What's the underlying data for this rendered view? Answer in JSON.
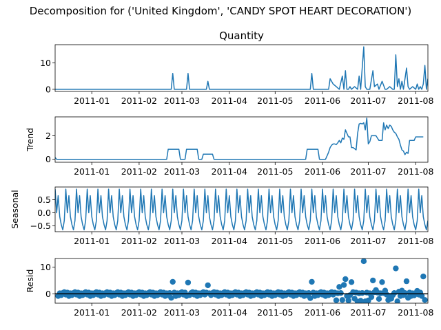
{
  "figure": {
    "suptitle": "Decomposition for ('United Kingdom', 'CANDY SPOT HEART DECORATION')",
    "colors": {
      "series": "#1f77b4",
      "axes": "#000000",
      "background": "#ffffff"
    }
  },
  "chart_data": [
    {
      "panel": "observed",
      "type": "line",
      "title": "Quantity",
      "ylabel": "",
      "xlim": [
        "2010-12-08",
        "2011-08-09"
      ],
      "ylim": [
        -0.8,
        16.8
      ],
      "x_ticks": [
        "2011-01",
        "2011-02",
        "2011-03",
        "2011-04",
        "2011-05",
        "2011-06",
        "2011-07",
        "2011-08"
      ],
      "y_ticks": [
        "0",
        "10"
      ],
      "y_tick_values": [
        0,
        10
      ],
      "series": [
        {
          "x": [
            "2010-12-08",
            "2011-02-22",
            "2011-02-23",
            "2011-02-24",
            "2011-03-04",
            "2011-03-05",
            "2011-03-06",
            "2011-03-17",
            "2011-03-18",
            "2011-03-19",
            "2011-05-24",
            "2011-05-25",
            "2011-05-26",
            "2011-06-05",
            "2011-06-06",
            "2011-06-08",
            "2011-06-10",
            "2011-06-12",
            "2011-06-14",
            "2011-06-15",
            "2011-06-16",
            "2011-06-17",
            "2011-06-18",
            "2011-06-19",
            "2011-06-20",
            "2011-06-22",
            "2011-06-24",
            "2011-06-25",
            "2011-06-26",
            "2011-06-28",
            "2011-06-29",
            "2011-06-30",
            "2011-07-02",
            "2011-07-04",
            "2011-07-05",
            "2011-07-07",
            "2011-07-08",
            "2011-07-10",
            "2011-07-12",
            "2011-07-13",
            "2011-07-15",
            "2011-07-17",
            "2011-07-18",
            "2011-07-19",
            "2011-07-20",
            "2011-07-21",
            "2011-07-22",
            "2011-07-23",
            "2011-07-24",
            "2011-07-26",
            "2011-07-27",
            "2011-07-28",
            "2011-07-30",
            "2011-08-01",
            "2011-08-02",
            "2011-08-03",
            "2011-08-04",
            "2011-08-05",
            "2011-08-06",
            "2011-08-07",
            "2011-08-08",
            "2011-08-09"
          ],
          "y": [
            0,
            0,
            6,
            0,
            0,
            6,
            0,
            0,
            3,
            0,
            0,
            6,
            0,
            0,
            4,
            2,
            1,
            0,
            5,
            0,
            7,
            0,
            0,
            1,
            0,
            1,
            0,
            5,
            0,
            16,
            1,
            0,
            0,
            7,
            1,
            2,
            0,
            3,
            0,
            0,
            1,
            0,
            0,
            13,
            1,
            4,
            0,
            3,
            0,
            8,
            1,
            0,
            1,
            0,
            2,
            0,
            1,
            0,
            2,
            9,
            0,
            4
          ]
        }
      ]
    },
    {
      "panel": "trend",
      "type": "line",
      "title": "",
      "ylabel": "Trend",
      "xlim": [
        "2010-12-08",
        "2011-08-09"
      ],
      "ylim": [
        -0.25,
        3.6
      ],
      "x_ticks": [
        "2011-01",
        "2011-02",
        "2011-03",
        "2011-04",
        "2011-05",
        "2011-06",
        "2011-07",
        "2011-08"
      ],
      "y_ticks": [
        "0",
        "2"
      ],
      "y_tick_values": [
        0,
        2
      ],
      "series": [
        {
          "x": [
            "2010-12-08",
            "2010-12-09",
            "2011-02-19",
            "2011-02-20",
            "2011-02-27",
            "2011-02-28",
            "2011-03-03",
            "2011-03-04",
            "2011-03-11",
            "2011-03-12",
            "2011-03-14",
            "2011-03-15",
            "2011-03-21",
            "2011-03-22",
            "2011-05-21",
            "2011-05-22",
            "2011-05-29",
            "2011-05-30",
            "2011-06-03",
            "2011-06-04",
            "2011-06-05",
            "2011-06-06",
            "2011-06-07",
            "2011-06-08",
            "2011-06-09",
            "2011-06-10",
            "2011-06-11",
            "2011-06-12",
            "2011-06-13",
            "2011-06-14",
            "2011-06-15",
            "2011-06-16",
            "2011-06-17",
            "2011-06-18",
            "2011-06-19",
            "2011-06-20",
            "2011-06-21",
            "2011-06-22",
            "2011-06-23",
            "2011-06-24",
            "2011-06-25",
            "2011-06-26",
            "2011-06-27",
            "2011-06-28",
            "2011-06-29",
            "2011-06-30",
            "2011-07-01",
            "2011-07-02",
            "2011-07-03",
            "2011-07-04",
            "2011-07-05",
            "2011-07-06",
            "2011-07-07",
            "2011-07-08",
            "2011-07-09",
            "2011-07-10",
            "2011-07-11",
            "2011-07-12",
            "2011-07-13",
            "2011-07-14",
            "2011-07-15",
            "2011-07-16",
            "2011-07-17",
            "2011-07-18",
            "2011-07-19",
            "2011-07-20",
            "2011-07-21",
            "2011-07-22",
            "2011-07-23",
            "2011-07-24",
            "2011-07-25",
            "2011-07-26",
            "2011-07-27",
            "2011-07-28",
            "2011-07-29",
            "2011-07-30",
            "2011-07-31",
            "2011-08-01",
            "2011-08-02",
            "2011-08-03",
            "2011-08-04",
            "2011-08-05",
            "2011-08-06"
          ],
          "y": [
            0.15,
            0,
            0,
            0.85,
            0.85,
            0,
            0,
            0.85,
            0.85,
            0,
            0,
            0.43,
            0.43,
            0,
            0,
            0.85,
            0.85,
            0,
            0,
            0.3,
            0.6,
            1.0,
            1.2,
            1.3,
            1.3,
            1.25,
            1.4,
            1.6,
            1.4,
            1.8,
            1.7,
            2.5,
            2.2,
            1.9,
            1.9,
            1.0,
            1.0,
            0.9,
            0.8,
            2.2,
            3.0,
            3.05,
            3.0,
            3.1,
            2.5,
            3.5,
            1.3,
            1.5,
            2.0,
            2.0,
            2.0,
            2.0,
            1.8,
            1.6,
            1.6,
            1.6,
            3.1,
            2.5,
            2.9,
            2.6,
            2.9,
            2.8,
            2.5,
            2.3,
            2.2,
            1.9,
            1.7,
            1.2,
            0.8,
            0.7,
            0.4,
            0.6,
            0.5,
            1.6,
            1.6,
            1.6,
            1.6,
            1.9,
            1.9,
            1.9,
            1.9,
            1.9,
            1.9
          ]
        }
      ]
    },
    {
      "panel": "seasonal",
      "type": "line",
      "title": "",
      "ylabel": "Seasonal",
      "xlim": [
        "2010-12-08",
        "2011-08-09"
      ],
      "ylim": [
        -0.72,
        0.98
      ],
      "x_ticks": [
        "2011-01",
        "2011-02",
        "2011-03",
        "2011-04",
        "2011-05",
        "2011-06",
        "2011-07",
        "2011-08"
      ],
      "y_ticks": [
        "0.5",
        "0.0",
        "−0.5"
      ],
      "y_tick_values": [
        0.5,
        0.0,
        -0.5
      ],
      "start": "2010-12-08",
      "end": "2011-08-09",
      "weekly_pattern": [
        0.9,
        0.0,
        0.65,
        -0.15,
        -0.45,
        -0.65,
        -0.3
      ]
    },
    {
      "panel": "resid",
      "type": "scatter",
      "title": "",
      "ylabel": "Resid",
      "xlim": [
        "2010-12-08",
        "2011-08-09"
      ],
      "ylim": [
        -3.5,
        13.2
      ],
      "x_ticks": [
        "2011-01",
        "2011-02",
        "2011-03",
        "2011-04",
        "2011-05",
        "2011-06",
        "2011-07",
        "2011-08"
      ],
      "y_ticks": [
        "0",
        "10"
      ],
      "y_tick_values": [
        0,
        10
      ],
      "reference_line": 0,
      "baseline_start": "2010-12-10",
      "baseline_end": "2011-08-07",
      "baseline_pattern": [
        -0.8,
        0.2,
        -0.5,
        0.3,
        0.6,
        -0.3,
        0.45
      ],
      "points": [
        {
          "x": "2011-02-22",
          "y": -1.5
        },
        {
          "x": "2011-02-23",
          "y": 4.5
        },
        {
          "x": "2011-03-05",
          "y": 4.2
        },
        {
          "x": "2011-03-18",
          "y": 3.2
        },
        {
          "x": "2011-05-25",
          "y": 4.5
        },
        {
          "x": "2011-05-24",
          "y": -1.6
        },
        {
          "x": "2011-06-10",
          "y": -2.4
        },
        {
          "x": "2011-06-12",
          "y": 2.6
        },
        {
          "x": "2011-06-14",
          "y": -2.3
        },
        {
          "x": "2011-06-15",
          "y": 3.3
        },
        {
          "x": "2011-06-16",
          "y": 5.5
        },
        {
          "x": "2011-06-18",
          "y": -2.5
        },
        {
          "x": "2011-06-20",
          "y": 4.4
        },
        {
          "x": "2011-06-22",
          "y": -1.8
        },
        {
          "x": "2011-06-24",
          "y": -2.9
        },
        {
          "x": "2011-06-26",
          "y": -2.6
        },
        {
          "x": "2011-06-28",
          "y": 12.2
        },
        {
          "x": "2011-06-29",
          "y": -2.8
        },
        {
          "x": "2011-07-01",
          "y": -2.5
        },
        {
          "x": "2011-07-03",
          "y": -1.2
        },
        {
          "x": "2011-07-04",
          "y": 5.0
        },
        {
          "x": "2011-07-06",
          "y": 1.4
        },
        {
          "x": "2011-07-08",
          "y": -1.9
        },
        {
          "x": "2011-07-10",
          "y": 4.4
        },
        {
          "x": "2011-07-12",
          "y": 1.2
        },
        {
          "x": "2011-07-14",
          "y": -2.3
        },
        {
          "x": "2011-07-16",
          "y": -1.8
        },
        {
          "x": "2011-07-19",
          "y": 9.5
        },
        {
          "x": "2011-07-20",
          "y": -2.8
        },
        {
          "x": "2011-07-21",
          "y": 0.8
        },
        {
          "x": "2011-07-23",
          "y": 1.2
        },
        {
          "x": "2011-07-26",
          "y": 4.7
        },
        {
          "x": "2011-07-27",
          "y": -1.5
        },
        {
          "x": "2011-07-31",
          "y": -0.6
        },
        {
          "x": "2011-08-02",
          "y": 1.1
        },
        {
          "x": "2011-08-06",
          "y": 6.5
        },
        {
          "x": "2011-08-07",
          "y": -2.3
        }
      ]
    }
  ]
}
